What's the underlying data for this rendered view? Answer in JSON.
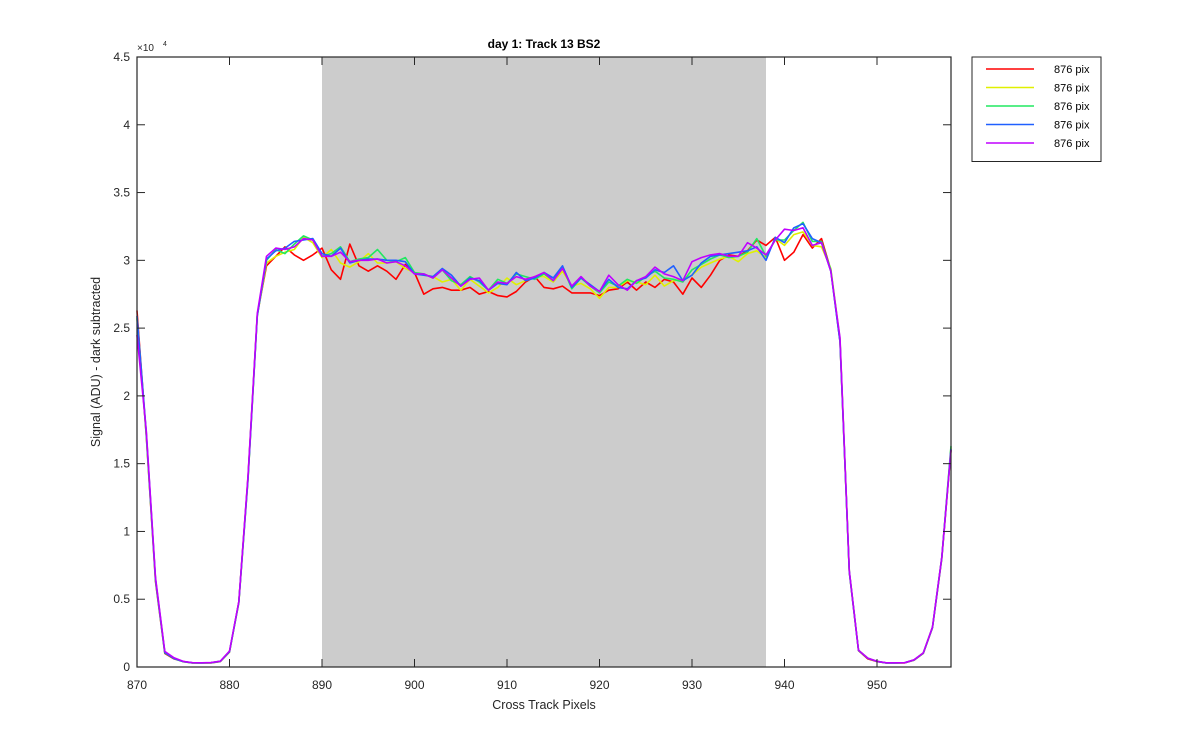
{
  "chart_data": {
    "type": "line",
    "title": "day 1: Track 13  BS2",
    "xlabel": "Cross Track Pixels",
    "ylabel": "Signal (ADU) - dark subtracted",
    "xlim": [
      870,
      958
    ],
    "ylim": [
      0,
      45000
    ],
    "y_exponent_label": "×10",
    "y_exponent_power": "4",
    "x_ticks": [
      870,
      880,
      890,
      900,
      910,
      920,
      930,
      940,
      950
    ],
    "y_ticks": [
      0,
      5000,
      10000,
      15000,
      20000,
      25000,
      30000,
      35000,
      40000,
      45000
    ],
    "y_tick_labels": [
      "0",
      "0.5",
      "1",
      "1.5",
      "2",
      "2.5",
      "3",
      "3.5",
      "4",
      "4.5"
    ],
    "grid": false,
    "legend_position": "outside-top-right",
    "shaded_region": {
      "x_start": 890,
      "x_end": 938,
      "color": "#cccccc"
    },
    "x": [
      870,
      871,
      872,
      873,
      874,
      875,
      876,
      877,
      878,
      879,
      880,
      881,
      882,
      883,
      884,
      885,
      886,
      887,
      888,
      889,
      890,
      891,
      892,
      893,
      894,
      895,
      896,
      897,
      898,
      899,
      900,
      901,
      902,
      903,
      904,
      905,
      906,
      907,
      908,
      909,
      910,
      911,
      912,
      913,
      914,
      915,
      916,
      917,
      918,
      919,
      920,
      921,
      922,
      923,
      924,
      925,
      926,
      927,
      928,
      929,
      930,
      931,
      932,
      933,
      934,
      935,
      936,
      937,
      938,
      939,
      940,
      941,
      942,
      943,
      944,
      945,
      946,
      947,
      948,
      949,
      950,
      951,
      952,
      953,
      954,
      955,
      956,
      957,
      958
    ],
    "series": [
      {
        "name": "876 pix",
        "color": "#ff0000",
        "values": [
          26300,
          17000,
          6300,
          1000,
          600,
          400,
          300,
          300,
          300,
          400,
          1100,
          4800,
          14000,
          26000,
          29600,
          30300,
          31000,
          30400,
          30000,
          30400,
          30900,
          29300,
          28600,
          31200,
          29600,
          29200,
          29600,
          29200,
          28600,
          29700,
          29100,
          27500,
          27900,
          28000,
          27800,
          27800,
          28000,
          27500,
          27700,
          27400,
          27300,
          27700,
          28400,
          28800,
          28000,
          27900,
          28100,
          27600,
          27600,
          27600,
          27400,
          27800,
          27900,
          28400,
          27800,
          28400,
          28000,
          28600,
          28400,
          27500,
          28700,
          28000,
          28900,
          30000,
          30400,
          30300,
          30700,
          31500,
          31100,
          31700,
          30000,
          30600,
          31900,
          30900,
          31600,
          29300,
          24000,
          7000,
          1200,
          600,
          400,
          300,
          300,
          300,
          500,
          1000,
          2900,
          8000,
          16000
        ]
      },
      {
        "name": "876 pix",
        "color": "#e0f000",
        "values": [
          25800,
          17200,
          6500,
          1100,
          650,
          380,
          310,
          300,
          320,
          420,
          1150,
          4700,
          13800,
          25900,
          29800,
          30300,
          30600,
          30800,
          31700,
          31300,
          30200,
          30800,
          29800,
          29500,
          29900,
          30500,
          29800,
          29800,
          29900,
          29400,
          29100,
          28900,
          28800,
          28400,
          28600,
          27800,
          28600,
          28100,
          27600,
          28000,
          28700,
          28200,
          28500,
          28800,
          28800,
          28400,
          29200,
          28100,
          28300,
          27900,
          27200,
          28000,
          28000,
          28500,
          28400,
          28200,
          28900,
          28100,
          28500,
          28600,
          28900,
          29500,
          29800,
          30100,
          30300,
          29900,
          30500,
          30700,
          30200,
          31600,
          31100,
          31900,
          32100,
          31100,
          31000,
          29400,
          24200,
          7100,
          1250,
          650,
          420,
          300,
          300,
          320,
          520,
          1050,
          2950,
          8100,
          16200
        ]
      },
      {
        "name": "876 pix",
        "color": "#20e860",
        "values": [
          25700,
          17100,
          6400,
          1050,
          620,
          390,
          305,
          300,
          315,
          410,
          1120,
          4750,
          13900,
          25950,
          30000,
          30800,
          30500,
          31200,
          31800,
          31500,
          30300,
          30500,
          31000,
          29900,
          30100,
          30200,
          30800,
          30000,
          29900,
          30200,
          29100,
          29000,
          28700,
          29300,
          28500,
          28200,
          28800,
          28400,
          27800,
          28600,
          28300,
          29000,
          28800,
          28600,
          29000,
          28500,
          29500,
          27900,
          28700,
          28100,
          27600,
          28400,
          28100,
          28600,
          28300,
          28800,
          29200,
          28700,
          28600,
          28400,
          29300,
          29700,
          30100,
          30400,
          30200,
          30300,
          30600,
          31600,
          30300,
          31500,
          31500,
          32200,
          32800,
          31400,
          31400,
          29300,
          24100,
          7000,
          1220,
          640,
          410,
          300,
          300,
          315,
          510,
          1020,
          2920,
          8050,
          16300
        ]
      },
      {
        "name": "876 pix",
        "color": "#2060ff",
        "values": [
          25900,
          17300,
          6500,
          1080,
          630,
          400,
          310,
          300,
          320,
          420,
          1140,
          4760,
          13850,
          25900,
          30100,
          30700,
          30900,
          31400,
          31500,
          31600,
          30500,
          30300,
          30900,
          29800,
          30000,
          30100,
          30100,
          30000,
          30000,
          29900,
          29000,
          28900,
          28800,
          29400,
          28900,
          28100,
          28700,
          28500,
          27800,
          28300,
          28200,
          29100,
          28500,
          28700,
          29100,
          28700,
          29600,
          28000,
          28700,
          28200,
          27700,
          28600,
          28000,
          27900,
          28500,
          28700,
          29300,
          29100,
          29600,
          28500,
          28900,
          29800,
          30300,
          30400,
          30500,
          30600,
          30700,
          31000,
          30000,
          31700,
          31300,
          32400,
          32700,
          31600,
          31300,
          29200,
          24000,
          7050,
          1230,
          645,
          415,
          305,
          300,
          318,
          515,
          1030,
          2930,
          8080,
          16100
        ]
      },
      {
        "name": "876 pix",
        "color": "#c000ff",
        "values": [
          24500,
          17400,
          6600,
          1150,
          680,
          410,
          320,
          310,
          330,
          430,
          1180,
          4800,
          14100,
          26100,
          30300,
          30900,
          30800,
          31000,
          31600,
          31500,
          30300,
          30300,
          30600,
          29900,
          30000,
          30000,
          30100,
          29800,
          29900,
          29600,
          29000,
          29000,
          28700,
          29300,
          28700,
          28100,
          28600,
          28700,
          27800,
          28400,
          28300,
          28800,
          28600,
          28800,
          29100,
          28500,
          29400,
          28100,
          28800,
          28100,
          27700,
          28900,
          28200,
          27800,
          28500,
          28800,
          29500,
          29000,
          28800,
          28500,
          29900,
          30200,
          30400,
          30500,
          30300,
          30300,
          31300,
          30900,
          30400,
          31500,
          32300,
          32200,
          32400,
          31100,
          31300,
          29200,
          24300,
          7100,
          1240,
          660,
          420,
          310,
          310,
          320,
          530,
          1040,
          2960,
          8100,
          16000
        ]
      }
    ]
  }
}
